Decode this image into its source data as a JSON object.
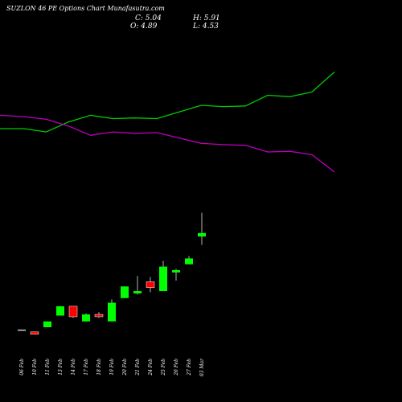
{
  "title": "SUZLON 46 PE Options Chart Munafasutra.com",
  "ohlc": {
    "close_label": "C: 5.04",
    "high_label": "H: 5.91",
    "open_label": "O: 4.89",
    "low_label": "L: 4.53"
  },
  "colors": {
    "background": "#000000",
    "up": "#00ff00",
    "down": "#ff0000",
    "upper_line": "#00cc00",
    "lower_line": "#bb00bb",
    "wick": "#ffffff"
  },
  "chart_data": {
    "type": "candlestick",
    "categories": [
      "06 Feb",
      "10 Feb",
      "11 Feb",
      "13 Feb",
      "14 Feb",
      "17 Feb",
      "18 Feb",
      "19 Feb",
      "20 Feb",
      "21 Feb",
      "24 Feb",
      "25 Feb",
      "26 Feb",
      "27 Feb",
      "03 Mar"
    ],
    "candles": [
      {
        "open": 0.9,
        "high": 0.9,
        "low": 0.9,
        "close": 0.9,
        "dir": "flat"
      },
      {
        "open": 0.8,
        "high": 0.8,
        "low": 0.7,
        "close": 0.7,
        "dir": "down"
      },
      {
        "open": 1.0,
        "high": 1.25,
        "low": 1.0,
        "close": 1.25,
        "dir": "up"
      },
      {
        "open": 1.5,
        "high": 1.9,
        "low": 1.5,
        "close": 1.9,
        "dir": "up"
      },
      {
        "open": 1.9,
        "high": 1.9,
        "low": 1.4,
        "close": 1.45,
        "dir": "down"
      },
      {
        "open": 1.25,
        "high": 1.6,
        "low": 1.25,
        "close": 1.55,
        "dir": "up"
      },
      {
        "open": 1.55,
        "high": 1.65,
        "low": 1.4,
        "close": 1.45,
        "dir": "down"
      },
      {
        "open": 1.25,
        "high": 2.2,
        "low": 1.25,
        "close": 2.05,
        "dir": "up"
      },
      {
        "open": 2.25,
        "high": 2.75,
        "low": 2.25,
        "close": 2.75,
        "dir": "up"
      },
      {
        "open": 2.45,
        "high": 3.2,
        "low": 2.4,
        "close": 2.55,
        "dir": "up"
      },
      {
        "open": 2.95,
        "high": 3.15,
        "low": 2.5,
        "close": 2.7,
        "dir": "down"
      },
      {
        "open": 2.55,
        "high": 3.85,
        "low": 2.55,
        "close": 3.6,
        "dir": "up"
      },
      {
        "open": 3.35,
        "high": 3.5,
        "low": 3.0,
        "close": 3.45,
        "dir": "up"
      },
      {
        "open": 3.7,
        "high": 4.05,
        "low": 3.7,
        "close": 3.95,
        "dir": "up"
      },
      {
        "open": 4.89,
        "high": 5.91,
        "low": 4.53,
        "close": 5.04,
        "dir": "up"
      }
    ],
    "upper_line": [
      6.5,
      6.5,
      6.45,
      6.6,
      6.7,
      6.65,
      6.66,
      6.65,
      6.75,
      6.85,
      6.83,
      6.84,
      7.0,
      6.98,
      7.05,
      7.35
    ],
    "lower_line": [
      6.7,
      6.68,
      6.64,
      6.54,
      6.4,
      6.45,
      6.43,
      6.44,
      6.36,
      6.28,
      6.26,
      6.25,
      6.15,
      6.16,
      6.11,
      5.85
    ],
    "grid": false
  }
}
